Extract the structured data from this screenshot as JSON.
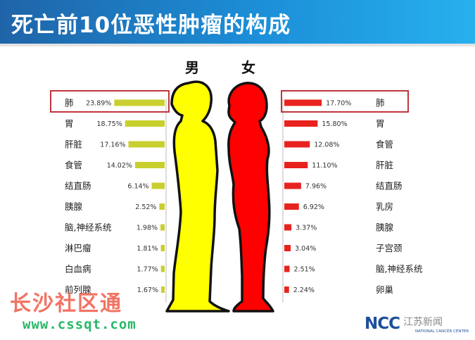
{
  "title": "死亡前10位恶性肿瘤的构成",
  "chart_data": {
    "type": "bar",
    "male": {
      "label": "男",
      "color": "#c9cf2f",
      "highlight_color": "#b8202a",
      "figure_color": "#ffff00",
      "categories": [
        "肺",
        "胃",
        "肝脏",
        "食管",
        "结直肠",
        "胰腺",
        "脑,神经系统",
        "淋巴瘤",
        "白血病",
        "前列腺"
      ],
      "values": [
        23.89,
        18.75,
        17.16,
        14.02,
        6.14,
        2.52,
        1.98,
        1.81,
        1.77,
        1.67
      ],
      "value_labels": [
        "23.89%",
        "18.75%",
        "17.16%",
        "14.02%",
        "6.14%",
        "2.52%",
        "1.98%",
        "1.81%",
        "1.77%",
        "1.67%"
      ]
    },
    "female": {
      "label": "女",
      "color": "#e8231f",
      "highlight_color": "#b8202a",
      "figure_color": "#ff0000",
      "categories": [
        "肺",
        "胃",
        "食管",
        "肝脏",
        "结直肠",
        "乳房",
        "胰腺",
        "子宫颈",
        "脑,神经系统",
        "卵巢"
      ],
      "values": [
        17.7,
        15.8,
        12.08,
        11.1,
        7.96,
        6.92,
        3.37,
        3.04,
        2.51,
        2.24
      ],
      "value_labels": [
        "17.70%",
        "15.80%",
        "12.08%",
        "11.10%",
        "7.96%",
        "6.92%",
        "3.37%",
        "3.04%",
        "2.51%",
        "2.24%"
      ]
    }
  },
  "watermark": {
    "text": "长沙社区通",
    "url": "www.cssqt.com"
  },
  "logo": {
    "text": "NCC",
    "subtext": "NATIONAL CANCER CENTER"
  },
  "wechat_tag": "江苏新闻"
}
